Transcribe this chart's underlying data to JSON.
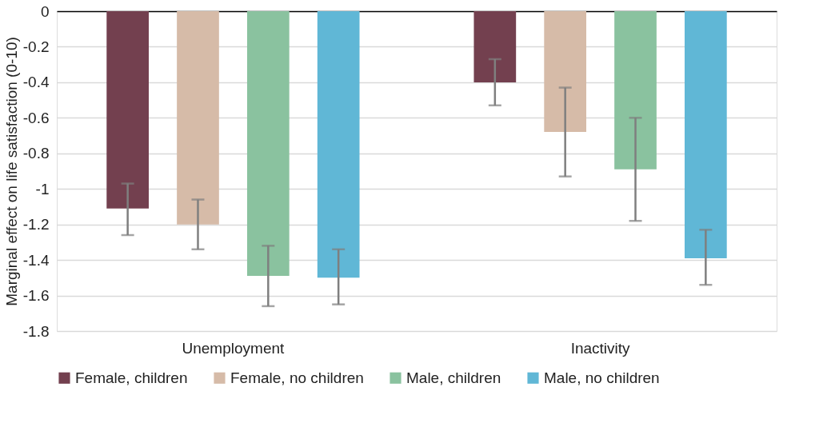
{
  "chart_data": {
    "type": "bar",
    "ylabel": "Marginal effect on life satisfaction (0-10)",
    "categories": [
      "Unemployment",
      "Inactivity"
    ],
    "series": [
      {
        "name": "Female, children",
        "color": "#73404f",
        "values": [
          -1.11,
          -0.4
        ],
        "errors": [
          [
            -1.26,
            -0.97
          ],
          [
            -0.53,
            -0.27
          ]
        ]
      },
      {
        "name": "Female, no children",
        "color": "#d6bba8",
        "values": [
          -1.2,
          -0.68
        ],
        "errors": [
          [
            -1.34,
            -1.06
          ],
          [
            -0.93,
            -0.43
          ]
        ]
      },
      {
        "name": "Male, children",
        "color": "#8ac29f",
        "values": [
          -1.49,
          -0.89
        ],
        "errors": [
          [
            -1.66,
            -1.32
          ],
          [
            -1.18,
            -0.6
          ]
        ]
      },
      {
        "name": "Male, no children",
        "color": "#60b7d6",
        "values": [
          -1.5,
          -1.39
        ],
        "errors": [
          [
            -1.65,
            -1.34
          ],
          [
            -1.54,
            -1.23
          ]
        ]
      }
    ],
    "ylim": [
      -1.8,
      0
    ],
    "yticks": [
      0,
      -0.2,
      -0.4,
      -0.6,
      -0.8,
      -1,
      -1.2,
      -1.4,
      -1.6,
      -1.8
    ],
    "grid": "y",
    "legend": "bottom"
  }
}
